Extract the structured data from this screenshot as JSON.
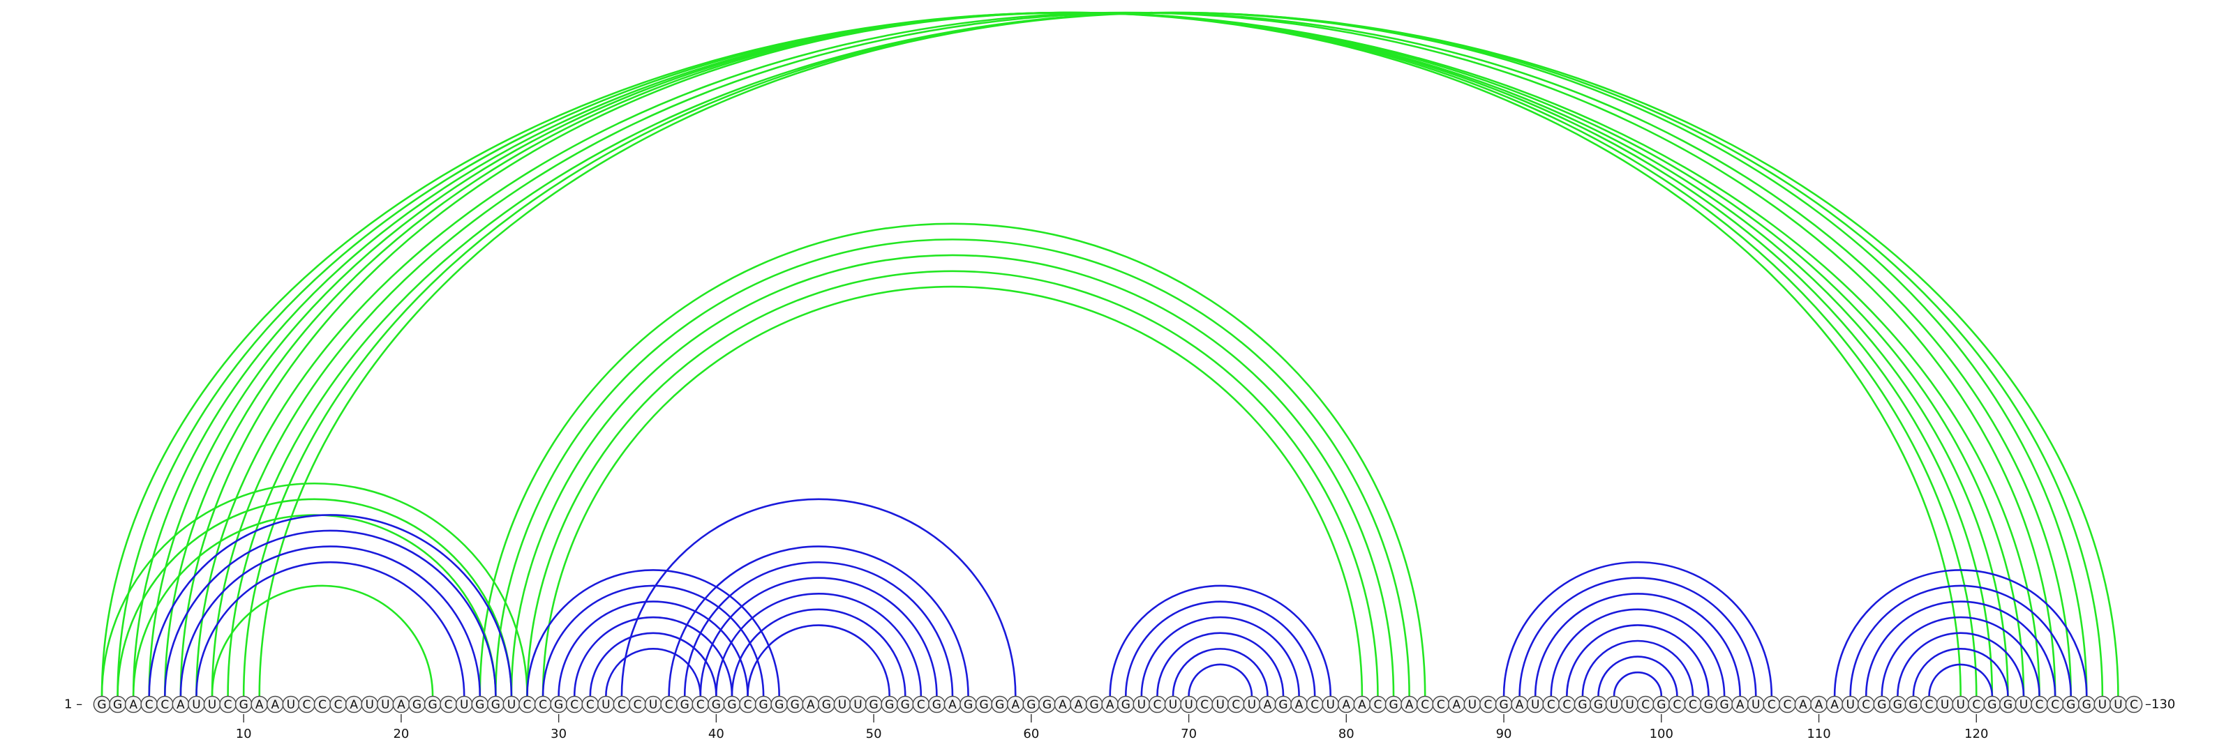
{
  "sequence": "GGACCAUUCGAAUCCCAUUAGGCUGGUCCGCCUCCUCGCGGCGGGAGUUGGGCGAGGGAGGAAGAGUCUUCUCUAGACUAACGACCAUCGAUCCGGUUCGCCGGAUCCAAAUCGGGCUUCGGUCCGGUUC",
  "labels": {
    "start": "1 –",
    "end": "–130"
  },
  "ticks": [
    10,
    20,
    30,
    40,
    50,
    60,
    70,
    80,
    90,
    100,
    110,
    120
  ],
  "colors": {
    "nested": "#1a1adb",
    "pseudoknot": "#22e622"
  },
  "chart_data": {
    "type": "arc-diagram",
    "length": 130,
    "pairs_blue": [
      [
        4,
        27
      ],
      [
        5,
        26
      ],
      [
        6,
        25
      ],
      [
        7,
        24
      ],
      [
        28,
        44
      ],
      [
        29,
        43
      ],
      [
        30,
        42
      ],
      [
        31,
        41
      ],
      [
        32,
        40
      ],
      [
        33,
        39
      ],
      [
        34,
        59
      ],
      [
        37,
        56
      ],
      [
        38,
        55
      ],
      [
        39,
        54
      ],
      [
        40,
        53
      ],
      [
        41,
        52
      ],
      [
        42,
        51
      ],
      [
        65,
        79
      ],
      [
        66,
        78
      ],
      [
        67,
        77
      ],
      [
        68,
        76
      ],
      [
        69,
        75
      ],
      [
        70,
        74
      ],
      [
        90,
        107
      ],
      [
        91,
        106
      ],
      [
        92,
        105
      ],
      [
        93,
        104
      ],
      [
        94,
        103
      ],
      [
        95,
        102
      ],
      [
        96,
        101
      ],
      [
        97,
        100
      ],
      [
        111,
        127
      ],
      [
        112,
        126
      ],
      [
        113,
        125
      ],
      [
        114,
        124
      ],
      [
        115,
        123
      ],
      [
        116,
        122
      ],
      [
        117,
        121
      ]
    ],
    "pairs_green": [
      [
        1,
        124
      ],
      [
        2,
        123
      ],
      [
        3,
        122
      ],
      [
        4,
        121
      ],
      [
        5,
        120
      ],
      [
        6,
        119
      ],
      [
        7,
        125
      ],
      [
        8,
        126
      ],
      [
        9,
        129
      ],
      [
        10,
        128
      ],
      [
        11,
        127
      ],
      [
        1,
        28
      ],
      [
        2,
        27
      ],
      [
        3,
        26
      ],
      [
        8,
        22
      ],
      [
        25,
        85
      ],
      [
        26,
        84
      ],
      [
        27,
        83
      ],
      [
        28,
        82
      ],
      [
        29,
        81
      ]
    ]
  }
}
